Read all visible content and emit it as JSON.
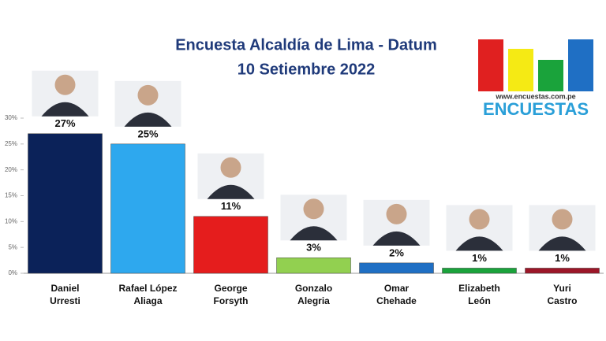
{
  "chart_data": {
    "type": "bar",
    "title": "Encuesta Alcaldía de Lima - Datum",
    "subtitle": "10  Setiembre 2022",
    "logo_url": "www.encuestas.com.pe",
    "logo_name": "ENCUESTAS",
    "categories": [
      "Daniel\nUrresti",
      "Rafael López\nAliaga",
      "George\nForsyth",
      "Gonzalo\nAlegria",
      "Omar\nChehade",
      "Elizabeth\nLeón",
      "Yuri\nCastro"
    ],
    "values": [
      27,
      25,
      11,
      3,
      2,
      1,
      1
    ],
    "value_labels": [
      "27%",
      "25%",
      "11%",
      "3%",
      "2%",
      "1%",
      "1%"
    ],
    "colors": [
      "#0b2259",
      "#2ea8ee",
      "#e51d1d",
      "#92d050",
      "#1f6fc4",
      "#1aa33b",
      "#9c1628"
    ],
    "ylim": [
      0,
      30
    ],
    "yticks": [
      {
        "value": 0,
        "label": "0%"
      },
      {
        "value": 5,
        "label": "5%"
      },
      {
        "value": 10,
        "label": "10%"
      },
      {
        "value": 15,
        "label": "15%"
      },
      {
        "value": 20,
        "label": "20%"
      },
      {
        "value": 25,
        "label": "25%"
      },
      {
        "value": 30,
        "label": "30%"
      }
    ],
    "grid": false
  }
}
